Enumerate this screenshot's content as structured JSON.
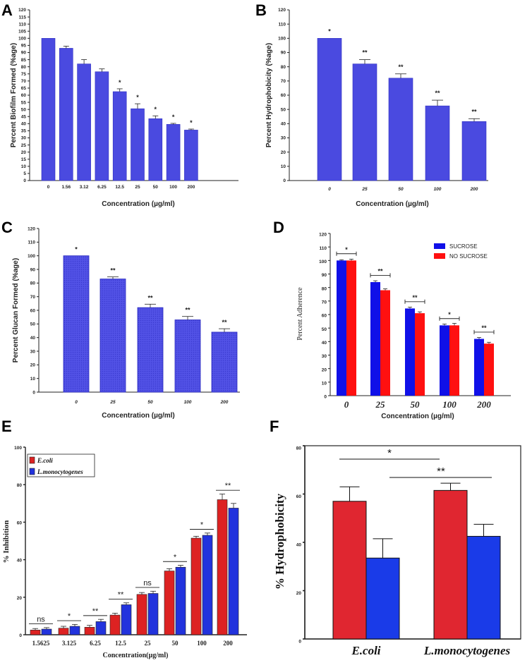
{
  "chart_data": [
    {
      "panel": "A",
      "type": "bar",
      "ylabel": "Percent Biofilm Formed (%age)",
      "xlabel": "Concentration (µg/ml)",
      "ylim": [
        0,
        120
      ],
      "yticks": [
        0,
        5,
        10,
        15,
        20,
        25,
        30,
        35,
        40,
        45,
        50,
        55,
        60,
        65,
        70,
        75,
        80,
        85,
        90,
        95,
        100,
        105,
        110,
        115,
        120
      ],
      "categories": [
        "0",
        "1.56",
        "3.12",
        "6.25",
        "12.5",
        "25",
        "50",
        "100",
        "200"
      ],
      "values": [
        100,
        93,
        82,
        76.5,
        62.5,
        50.5,
        43.5,
        39.5,
        35.5
      ],
      "errors": [
        0,
        1.5,
        3,
        2,
        2,
        3.5,
        2,
        0.7,
        0.7
      ],
      "significance": [
        "",
        "",
        "",
        "",
        "*",
        "*",
        "*",
        "*",
        "*"
      ],
      "color": "#4a4ae0"
    },
    {
      "panel": "B",
      "type": "bar",
      "ylabel": "Percent Hydrophobicity (%age)",
      "xlabel": "Concentration (µg/ml)",
      "ylim": [
        0,
        120
      ],
      "yticks": [
        0,
        10,
        20,
        30,
        40,
        50,
        60,
        70,
        80,
        90,
        100,
        110,
        120
      ],
      "categories": [
        "0",
        "25",
        "50",
        "100",
        "200"
      ],
      "values": [
        100,
        82,
        72,
        52.5,
        41.5
      ],
      "errors": [
        0,
        3,
        3,
        4,
        2
      ],
      "significance": [
        "*",
        "**",
        "**",
        "**",
        "**"
      ],
      "color": "#4a4ae0"
    },
    {
      "panel": "C",
      "type": "bar",
      "ylabel": "Percent Glucan Formed (%age)",
      "xlabel": "Concentration (µg/ml)",
      "ylim": [
        0,
        120
      ],
      "yticks": [
        0,
        10,
        20,
        30,
        40,
        50,
        60,
        70,
        80,
        90,
        100,
        110,
        120
      ],
      "categories": [
        "0",
        "25",
        "50",
        "100",
        "200"
      ],
      "values": [
        100,
        83,
        62,
        53,
        44
      ],
      "errors": [
        0,
        1.5,
        2.5,
        2.5,
        2.5
      ],
      "significance": [
        "*",
        "**",
        "**",
        "**",
        "**"
      ],
      "color": "#4a4ae0"
    },
    {
      "panel": "D",
      "type": "bar",
      "ylabel": "Percent Adherence",
      "xlabel": "Concentration (µg/ml)",
      "ylim": [
        0,
        120
      ],
      "yticks": [
        0,
        10,
        20,
        30,
        40,
        50,
        60,
        70,
        80,
        90,
        100,
        110,
        120
      ],
      "categories": [
        "0",
        "25",
        "50",
        "100",
        "200"
      ],
      "series": [
        {
          "name": "SUCROSE",
          "values": [
            100,
            84,
            64.5,
            52,
            42
          ],
          "errors": [
            0.5,
            1,
            1,
            1,
            1
          ],
          "color": "#1010e8"
        },
        {
          "name": "NO SUCROSE",
          "values": [
            100,
            78,
            61,
            52,
            38.5
          ],
          "errors": [
            1,
            1,
            1,
            1.5,
            1
          ],
          "color": "#ff1010"
        }
      ],
      "significance": [
        "*",
        "**",
        "**",
        "*",
        "**"
      ]
    },
    {
      "panel": "E",
      "type": "bar",
      "ylabel": "% Inhibition",
      "xlabel": "Concentration(µg/ml)",
      "ylim": [
        0,
        100
      ],
      "yticks": [
        0,
        20,
        40,
        60,
        80,
        100
      ],
      "categories": [
        "1.5625",
        "3.125",
        "6.25",
        "12.5",
        "25",
        "50",
        "100",
        "200"
      ],
      "series": [
        {
          "name": "E.coli",
          "values": [
            2.5,
            3.5,
            4,
            10.5,
            21.5,
            34,
            51.5,
            72
          ],
          "errors": [
            0.8,
            1,
            1,
            1,
            1,
            1.2,
            1,
            3
          ],
          "color": "#dd2222"
        },
        {
          "name": "L.monocytogenes",
          "values": [
            3,
            4.5,
            7,
            16,
            22,
            36,
            53,
            67.5
          ],
          "errors": [
            0.8,
            1,
            1.2,
            1,
            1.2,
            1,
            1.2,
            2.5
          ],
          "color": "#2233dd"
        }
      ],
      "significance": [
        "ns",
        "*",
        "**",
        "**",
        "ns",
        "*",
        "*",
        "**"
      ]
    },
    {
      "panel": "F",
      "type": "bar",
      "ylabel": "% Hydrophobicity",
      "xlabel": "",
      "ylim": [
        0,
        80
      ],
      "yticks": [
        0,
        20,
        40,
        60,
        80
      ],
      "categories": [
        "E.coli",
        "L.monocytogenes"
      ],
      "series": [
        {
          "name": "red",
          "values": [
            57,
            61.5
          ],
          "errors": [
            6,
            3
          ],
          "color": "#e02630"
        },
        {
          "name": "blue",
          "values": [
            33.5,
            42.5
          ],
          "errors": [
            8,
            5
          ],
          "color": "#1a3be8"
        }
      ],
      "brackets": [
        "*",
        "**"
      ]
    }
  ]
}
